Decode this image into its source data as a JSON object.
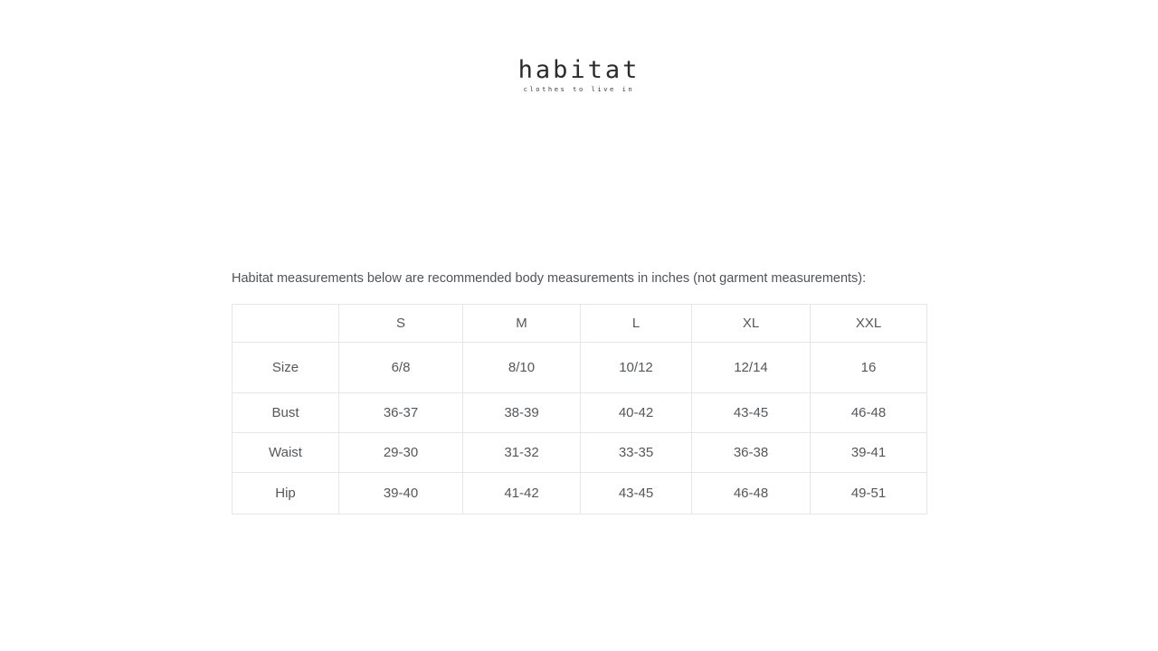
{
  "logo": {
    "brand": "habitat",
    "tagline": "clothes to live in"
  },
  "size_chart": {
    "intro": "Habitat measurements below are recommended body measurements in inches (not garment measurements):",
    "columns": [
      "",
      "S",
      "M",
      "L",
      "XL",
      "XXL"
    ],
    "rows": [
      {
        "label": "Size",
        "values": [
          "6/8",
          "8/10",
          "10/12",
          "12/14",
          "16"
        ]
      },
      {
        "label": "Bust",
        "values": [
          "36-37",
          "38-39",
          "40-42",
          "43-45",
          "46-48"
        ]
      },
      {
        "label": "Waist",
        "values": [
          "29-30",
          "31-32",
          "33-35",
          "36-38",
          "39-41"
        ]
      },
      {
        "label": "Hip",
        "values": [
          "39-40",
          "41-42",
          "43-45",
          "46-48",
          "49-51"
        ]
      }
    ]
  },
  "colors": {
    "background": "#ffffff",
    "text": "#54575b",
    "intro_text": "#4f5358",
    "table_border": "#e6e6e6",
    "logo_text": "#2b2b2b"
  }
}
